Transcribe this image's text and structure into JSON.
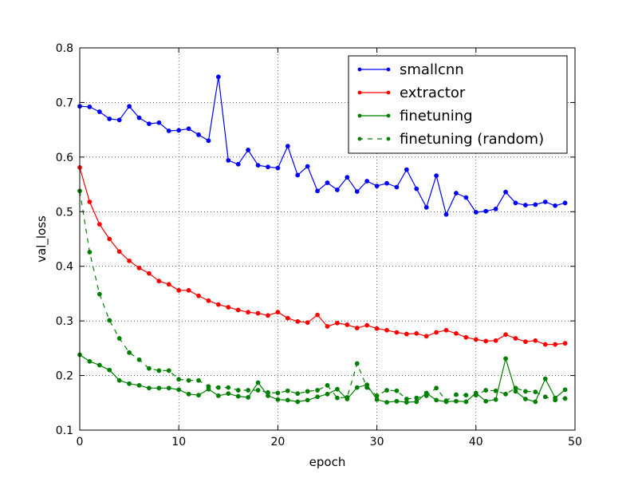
{
  "chart_data": {
    "type": "line",
    "title": "",
    "xlabel": "epoch",
    "ylabel": "val_loss",
    "xlim": [
      0,
      50
    ],
    "ylim": [
      0.1,
      0.8
    ],
    "xticks": [
      0,
      10,
      20,
      30,
      40,
      50
    ],
    "yticks": [
      0.1,
      0.2,
      0.3,
      0.4,
      0.5,
      0.6,
      0.7,
      0.8
    ],
    "xtick_labels": [
      "0",
      "10",
      "20",
      "30",
      "40",
      "50"
    ],
    "ytick_labels": [
      "0.1",
      "0.2",
      "0.3",
      "0.4",
      "0.5",
      "0.6",
      "0.7",
      "0.8"
    ],
    "grid": true,
    "legend_position": "top-right",
    "x": [
      0,
      1,
      2,
      3,
      4,
      5,
      6,
      7,
      8,
      9,
      10,
      11,
      12,
      13,
      14,
      15,
      16,
      17,
      18,
      19,
      20,
      21,
      22,
      23,
      24,
      25,
      26,
      27,
      28,
      29,
      30,
      31,
      32,
      33,
      34,
      35,
      36,
      37,
      38,
      39,
      40,
      41,
      42,
      43,
      44,
      45,
      46,
      47,
      48,
      49
    ],
    "series": [
      {
        "name": "smallcnn",
        "color": "#0000ff",
        "linestyle": "solid",
        "values": [
          0.693,
          0.692,
          0.683,
          0.67,
          0.668,
          0.693,
          0.672,
          0.661,
          0.663,
          0.648,
          0.649,
          0.652,
          0.641,
          0.63,
          0.747,
          0.594,
          0.587,
          0.613,
          0.585,
          0.582,
          0.58,
          0.62,
          0.567,
          0.583,
          0.538,
          0.553,
          0.54,
          0.563,
          0.537,
          0.556,
          0.547,
          0.552,
          0.545,
          0.577,
          0.542,
          0.508,
          0.566,
          0.495,
          0.534,
          0.526,
          0.499,
          0.501,
          0.505,
          0.536,
          0.516,
          0.512,
          0.513,
          0.518,
          0.511,
          0.516
        ]
      },
      {
        "name": "extractor",
        "color": "#ff0000",
        "linestyle": "solid",
        "values": [
          0.581,
          0.518,
          0.477,
          0.45,
          0.427,
          0.41,
          0.397,
          0.387,
          0.373,
          0.367,
          0.356,
          0.356,
          0.346,
          0.337,
          0.33,
          0.325,
          0.32,
          0.316,
          0.314,
          0.31,
          0.316,
          0.305,
          0.299,
          0.297,
          0.311,
          0.29,
          0.296,
          0.293,
          0.287,
          0.292,
          0.286,
          0.283,
          0.279,
          0.276,
          0.277,
          0.272,
          0.279,
          0.283,
          0.277,
          0.27,
          0.266,
          0.263,
          0.264,
          0.275,
          0.268,
          0.262,
          0.264,
          0.257,
          0.257,
          0.259
        ]
      },
      {
        "name": "finetuning",
        "color": "#008000",
        "linestyle": "solid",
        "values": [
          0.238,
          0.226,
          0.219,
          0.21,
          0.191,
          0.185,
          0.182,
          0.177,
          0.177,
          0.177,
          0.174,
          0.166,
          0.164,
          0.175,
          0.163,
          0.167,
          0.162,
          0.16,
          0.187,
          0.163,
          0.156,
          0.155,
          0.152,
          0.155,
          0.161,
          0.166,
          0.175,
          0.157,
          0.178,
          0.183,
          0.156,
          0.151,
          0.153,
          0.151,
          0.152,
          0.168,
          0.155,
          0.152,
          0.153,
          0.152,
          0.168,
          0.153,
          0.156,
          0.231,
          0.171,
          0.157,
          0.152,
          0.194,
          0.159,
          0.174
        ]
      },
      {
        "name": "finetuning (random)",
        "color": "#008000",
        "linestyle": "dashed",
        "values": [
          0.538,
          0.426,
          0.349,
          0.301,
          0.268,
          0.242,
          0.229,
          0.213,
          0.209,
          0.209,
          0.193,
          0.191,
          0.191,
          0.18,
          0.178,
          0.178,
          0.173,
          0.173,
          0.173,
          0.169,
          0.168,
          0.172,
          0.167,
          0.171,
          0.173,
          0.182,
          0.159,
          0.16,
          0.222,
          0.178,
          0.163,
          0.173,
          0.172,
          0.157,
          0.159,
          0.163,
          0.177,
          0.154,
          0.165,
          0.164,
          0.164,
          0.173,
          0.172,
          0.166,
          0.177,
          0.171,
          0.17,
          0.161,
          0.155,
          0.158
        ]
      }
    ]
  }
}
